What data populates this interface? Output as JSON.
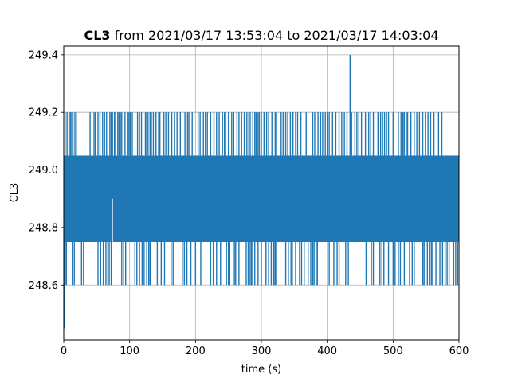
{
  "chart_data": {
    "type": "line",
    "title_bold": "CL3",
    "title_rest": " from 2021/03/17 13:53:04 to 2021/03/17 14:03:04",
    "xlabel": "time (s)",
    "ylabel": "CL3",
    "xlim": [
      0,
      600
    ],
    "ylim": [
      248.41,
      249.43
    ],
    "xticks": [
      0,
      100,
      200,
      300,
      400,
      500,
      600
    ],
    "xtick_labels": [
      "0",
      "100",
      "200",
      "300",
      "400",
      "500",
      "600"
    ],
    "yticks": [
      248.6,
      248.8,
      249.0,
      249.2,
      249.4
    ],
    "ytick_labels": [
      "248.6",
      "248.8",
      "249.0",
      "249.2",
      "249.4"
    ],
    "grid": true,
    "series": [
      {
        "color": "#1f77b4",
        "band": {
          "x_start": 0,
          "x_end": 600,
          "y_low": 248.75,
          "y_high": 249.05
        },
        "upper_spikes": {
          "y": 249.2,
          "x": [
            2,
            5,
            8,
            10,
            12,
            14,
            17,
            19,
            40,
            46,
            48,
            52,
            55,
            59,
            62,
            65,
            70,
            72,
            74,
            77,
            79,
            82,
            84,
            86,
            88,
            93,
            97,
            99,
            101,
            104,
            112,
            115,
            118,
            124,
            126,
            128,
            131,
            133,
            136,
            140,
            144,
            146,
            152,
            155,
            159,
            164,
            168,
            172,
            177,
            184,
            188,
            190,
            195,
            204,
            207,
            212,
            215,
            218,
            223,
            228,
            232,
            236,
            241,
            244,
            246,
            250,
            255,
            258,
            263,
            266,
            270,
            274,
            278,
            281,
            283,
            287,
            290,
            292,
            295,
            297,
            300,
            304,
            308,
            311,
            316,
            321,
            323,
            330,
            333,
            337,
            340,
            344,
            348,
            352,
            355,
            360,
            368,
            378,
            381,
            386,
            390,
            393,
            397,
            400,
            403,
            408,
            413,
            418,
            422,
            426,
            430,
            437,
            442,
            445,
            448,
            452,
            458,
            463,
            466,
            470,
            477,
            481,
            484,
            487,
            490,
            493,
            500,
            508,
            512,
            515,
            517,
            520,
            522,
            527,
            532,
            536,
            540,
            545,
            549,
            553,
            557,
            562,
            569,
            574
          ]
        },
        "lower_spikes": {
          "y": 248.6,
          "x": [
            2,
            4,
            13,
            16,
            27,
            30,
            52,
            56,
            60,
            64,
            67,
            69,
            72,
            88,
            91,
            94,
            108,
            111,
            115,
            119,
            122,
            126,
            129,
            131,
            142,
            148,
            153,
            163,
            166,
            180,
            183,
            187,
            193,
            200,
            208,
            223,
            227,
            232,
            238,
            247,
            250,
            252,
            259,
            261,
            266,
            277,
            280,
            283,
            285,
            287,
            290,
            295,
            300,
            307,
            311,
            315,
            319,
            321,
            323,
            337,
            341,
            345,
            347,
            352,
            358,
            361,
            365,
            371,
            375,
            378,
            380,
            383,
            385,
            403,
            410,
            415,
            418,
            428,
            432,
            459,
            467,
            470,
            480,
            483,
            486,
            493,
            500,
            503,
            508,
            511,
            517,
            525,
            529,
            532,
            545,
            547,
            552,
            555,
            558,
            560,
            565,
            571,
            575,
            579,
            582,
            585,
            592,
            595,
            598
          ]
        },
        "extreme_low": {
          "x": 1,
          "y": 248.45
        },
        "extreme_high": {
          "x": 435,
          "y": 249.4
        },
        "gap": {
          "x": 74,
          "y_top": 248.9,
          "y_bottom": 248.74
        }
      }
    ]
  }
}
